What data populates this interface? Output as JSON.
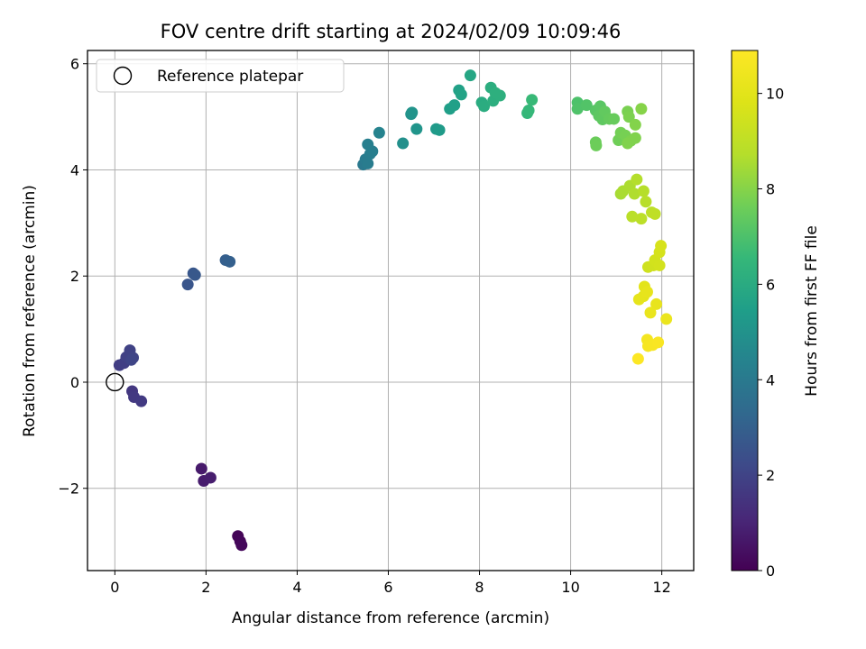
{
  "chart_data": {
    "type": "scatter",
    "title": "FOV centre drift starting at 2024/02/09 10:09:46",
    "xlabel": "Angular distance from reference (arcmin)",
    "ylabel": "Rotation from reference (arcmin)",
    "xlim": [
      -0.6,
      12.7
    ],
    "ylim": [
      -3.55,
      6.25
    ],
    "xticks": [
      0,
      2,
      4,
      6,
      8,
      10,
      12
    ],
    "yticks": [
      -2,
      0,
      2,
      4,
      6
    ],
    "grid": true,
    "legend": {
      "placement": "top-left",
      "entries": [
        "Reference platepar"
      ]
    },
    "reference_point": {
      "x": 0,
      "y": 0,
      "marker": "open-circle"
    },
    "colorbar": {
      "label": "Hours from first FF file",
      "colormap": "viridis",
      "range": [
        0,
        10.9
      ],
      "ticks": [
        0,
        2,
        4,
        6,
        8,
        10
      ]
    },
    "points": [
      {
        "x": 2.7,
        "y": -2.9,
        "c": 0.1
      },
      {
        "x": 2.75,
        "y": -3.0,
        "c": 0.15
      },
      {
        "x": 2.78,
        "y": -3.07,
        "c": 0.2
      },
      {
        "x": 1.9,
        "y": -1.63,
        "c": 0.7
      },
      {
        "x": 1.95,
        "y": -1.86,
        "c": 0.75
      },
      {
        "x": 2.1,
        "y": -1.8,
        "c": 0.8
      },
      {
        "x": 0.38,
        "y": -0.17,
        "c": 1.6
      },
      {
        "x": 0.42,
        "y": -0.28,
        "c": 1.65
      },
      {
        "x": 0.58,
        "y": -0.36,
        "c": 1.7
      },
      {
        "x": 0.1,
        "y": 0.32,
        "c": 1.8
      },
      {
        "x": 0.2,
        "y": 0.36,
        "c": 1.85
      },
      {
        "x": 0.25,
        "y": 0.47,
        "c": 1.9
      },
      {
        "x": 0.33,
        "y": 0.6,
        "c": 1.95
      },
      {
        "x": 0.4,
        "y": 0.46,
        "c": 2.0
      },
      {
        "x": 0.36,
        "y": 0.42,
        "c": 2.05
      },
      {
        "x": 1.6,
        "y": 1.84,
        "c": 2.6
      },
      {
        "x": 1.72,
        "y": 2.05,
        "c": 2.65
      },
      {
        "x": 1.76,
        "y": 2.02,
        "c": 2.7
      },
      {
        "x": 2.43,
        "y": 2.3,
        "c": 2.95
      },
      {
        "x": 2.52,
        "y": 2.27,
        "c": 3.0
      },
      {
        "x": 5.45,
        "y": 4.1,
        "c": 4.0
      },
      {
        "x": 5.5,
        "y": 4.2,
        "c": 4.05
      },
      {
        "x": 5.55,
        "y": 4.12,
        "c": 4.1
      },
      {
        "x": 5.6,
        "y": 4.3,
        "c": 4.15
      },
      {
        "x": 5.65,
        "y": 4.35,
        "c": 4.2
      },
      {
        "x": 5.55,
        "y": 4.48,
        "c": 4.25
      },
      {
        "x": 5.8,
        "y": 4.7,
        "c": 4.4
      },
      {
        "x": 6.32,
        "y": 4.5,
        "c": 4.9
      },
      {
        "x": 6.5,
        "y": 5.05,
        "c": 5.0
      },
      {
        "x": 6.52,
        "y": 5.08,
        "c": 5.05
      },
      {
        "x": 6.62,
        "y": 4.77,
        "c": 5.1
      },
      {
        "x": 7.05,
        "y": 4.77,
        "c": 5.3
      },
      {
        "x": 7.12,
        "y": 4.75,
        "c": 5.35
      },
      {
        "x": 7.35,
        "y": 5.15,
        "c": 5.5
      },
      {
        "x": 7.45,
        "y": 5.22,
        "c": 5.55
      },
      {
        "x": 7.55,
        "y": 5.5,
        "c": 5.6
      },
      {
        "x": 7.6,
        "y": 5.42,
        "c": 5.65
      },
      {
        "x": 7.8,
        "y": 5.78,
        "c": 5.8
      },
      {
        "x": 8.05,
        "y": 5.27,
        "c": 6.0
      },
      {
        "x": 8.1,
        "y": 5.2,
        "c": 6.05
      },
      {
        "x": 8.25,
        "y": 5.55,
        "c": 6.1
      },
      {
        "x": 8.3,
        "y": 5.3,
        "c": 6.15
      },
      {
        "x": 8.45,
        "y": 5.4,
        "c": 6.2
      },
      {
        "x": 8.35,
        "y": 5.45,
        "c": 6.2
      },
      {
        "x": 9.05,
        "y": 5.07,
        "c": 6.5
      },
      {
        "x": 9.08,
        "y": 5.12,
        "c": 6.55
      },
      {
        "x": 9.15,
        "y": 5.32,
        "c": 6.6
      },
      {
        "x": 10.15,
        "y": 5.27,
        "c": 7.0
      },
      {
        "x": 10.15,
        "y": 5.15,
        "c": 7.05
      },
      {
        "x": 10.35,
        "y": 5.22,
        "c": 7.1
      },
      {
        "x": 10.55,
        "y": 5.12,
        "c": 7.2
      },
      {
        "x": 10.65,
        "y": 5.2,
        "c": 7.25
      },
      {
        "x": 10.62,
        "y": 5.02,
        "c": 7.3
      },
      {
        "x": 10.7,
        "y": 4.95,
        "c": 7.35
      },
      {
        "x": 10.75,
        "y": 5.1,
        "c": 7.4
      },
      {
        "x": 10.85,
        "y": 4.96,
        "c": 7.45
      },
      {
        "x": 10.95,
        "y": 4.96,
        "c": 7.5
      },
      {
        "x": 10.55,
        "y": 4.52,
        "c": 7.55
      },
      {
        "x": 10.56,
        "y": 4.46,
        "c": 7.6
      },
      {
        "x": 11.05,
        "y": 4.56,
        "c": 7.65
      },
      {
        "x": 11.1,
        "y": 4.7,
        "c": 7.7
      },
      {
        "x": 11.2,
        "y": 4.65,
        "c": 7.75
      },
      {
        "x": 11.25,
        "y": 5.1,
        "c": 7.8
      },
      {
        "x": 11.28,
        "y": 5.0,
        "c": 7.85
      },
      {
        "x": 11.32,
        "y": 4.55,
        "c": 7.85
      },
      {
        "x": 11.25,
        "y": 4.5,
        "c": 7.9
      },
      {
        "x": 11.42,
        "y": 4.6,
        "c": 7.9
      },
      {
        "x": 11.42,
        "y": 4.85,
        "c": 7.95
      },
      {
        "x": 11.55,
        "y": 5.15,
        "c": 8.0
      },
      {
        "x": 11.1,
        "y": 3.55,
        "c": 8.5
      },
      {
        "x": 11.15,
        "y": 3.6,
        "c": 8.55
      },
      {
        "x": 11.3,
        "y": 3.7,
        "c": 8.6
      },
      {
        "x": 11.4,
        "y": 3.55,
        "c": 8.65
      },
      {
        "x": 11.45,
        "y": 3.82,
        "c": 8.7
      },
      {
        "x": 11.6,
        "y": 3.6,
        "c": 8.75
      },
      {
        "x": 11.65,
        "y": 3.4,
        "c": 8.8
      },
      {
        "x": 11.35,
        "y": 3.12,
        "c": 8.85
      },
      {
        "x": 11.55,
        "y": 3.08,
        "c": 8.9
      },
      {
        "x": 11.78,
        "y": 3.2,
        "c": 8.95
      },
      {
        "x": 11.85,
        "y": 3.17,
        "c": 9.0
      },
      {
        "x": 11.7,
        "y": 2.17,
        "c": 9.4
      },
      {
        "x": 11.82,
        "y": 2.2,
        "c": 9.45
      },
      {
        "x": 11.85,
        "y": 2.3,
        "c": 9.5
      },
      {
        "x": 11.95,
        "y": 2.2,
        "c": 9.55
      },
      {
        "x": 11.95,
        "y": 2.45,
        "c": 9.6
      },
      {
        "x": 11.98,
        "y": 2.57,
        "c": 9.65
      },
      {
        "x": 11.62,
        "y": 1.8,
        "c": 10.0
      },
      {
        "x": 11.6,
        "y": 1.62,
        "c": 10.05
      },
      {
        "x": 11.5,
        "y": 1.56,
        "c": 10.1
      },
      {
        "x": 11.68,
        "y": 1.7,
        "c": 10.15
      },
      {
        "x": 11.88,
        "y": 1.47,
        "c": 10.2
      },
      {
        "x": 11.75,
        "y": 1.31,
        "c": 10.25
      },
      {
        "x": 12.1,
        "y": 1.19,
        "c": 10.3
      },
      {
        "x": 11.68,
        "y": 0.8,
        "c": 10.6
      },
      {
        "x": 11.7,
        "y": 0.68,
        "c": 10.65
      },
      {
        "x": 11.8,
        "y": 0.7,
        "c": 10.7
      },
      {
        "x": 11.92,
        "y": 0.75,
        "c": 10.75
      },
      {
        "x": 11.48,
        "y": 0.44,
        "c": 10.85
      }
    ]
  }
}
